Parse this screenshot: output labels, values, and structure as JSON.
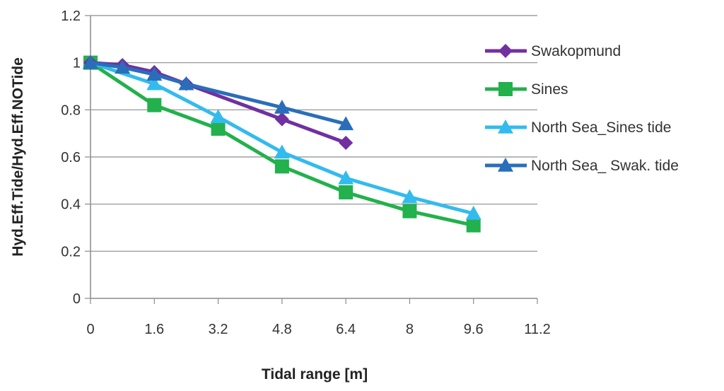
{
  "chart_data": {
    "type": "line",
    "xlabel": "Tidal range [m]",
    "ylabel": "Hyd.Eff.Tide/Hyd.Eff.NOTide",
    "xlim": [
      0,
      11.2
    ],
    "ylim": [
      0,
      1.2
    ],
    "xticks": [
      "0",
      "1.6",
      "3.2",
      "4.8",
      "6.4",
      "8",
      "9.6",
      "11.2"
    ],
    "yticks": [
      "0",
      "0.2",
      "0.4",
      "0.6",
      "0.8",
      "1",
      "1.2"
    ],
    "grid": "horizontal",
    "legend_position": "right",
    "series": [
      {
        "name": "Swakopmund",
        "color": "#7030A0",
        "marker": "diamond",
        "x": [
          0,
          0.8,
          1.6,
          2.4,
          4.8,
          6.4
        ],
        "y": [
          1.0,
          0.99,
          0.96,
          0.91,
          0.76,
          0.66
        ]
      },
      {
        "name": "Sines",
        "color": "#22B14C",
        "marker": "square",
        "x": [
          0,
          1.6,
          3.2,
          4.8,
          6.4,
          8.0,
          9.6
        ],
        "y": [
          1.0,
          0.82,
          0.72,
          0.56,
          0.45,
          0.37,
          0.31
        ]
      },
      {
        "name": "North Sea_Sines tide",
        "color": "#33BBEE",
        "marker": "triangle",
        "x": [
          0,
          1.6,
          3.2,
          4.8,
          6.4,
          8.0,
          9.6
        ],
        "y": [
          1.0,
          0.91,
          0.77,
          0.62,
          0.51,
          0.43,
          0.36
        ]
      },
      {
        "name": "North Sea_ Swak. tide",
        "color": "#2A6EBB",
        "marker": "triangle",
        "x": [
          0,
          0.8,
          1.6,
          2.4,
          4.8,
          6.4
        ],
        "y": [
          1.0,
          0.98,
          0.95,
          0.91,
          0.81,
          0.74
        ]
      }
    ]
  }
}
